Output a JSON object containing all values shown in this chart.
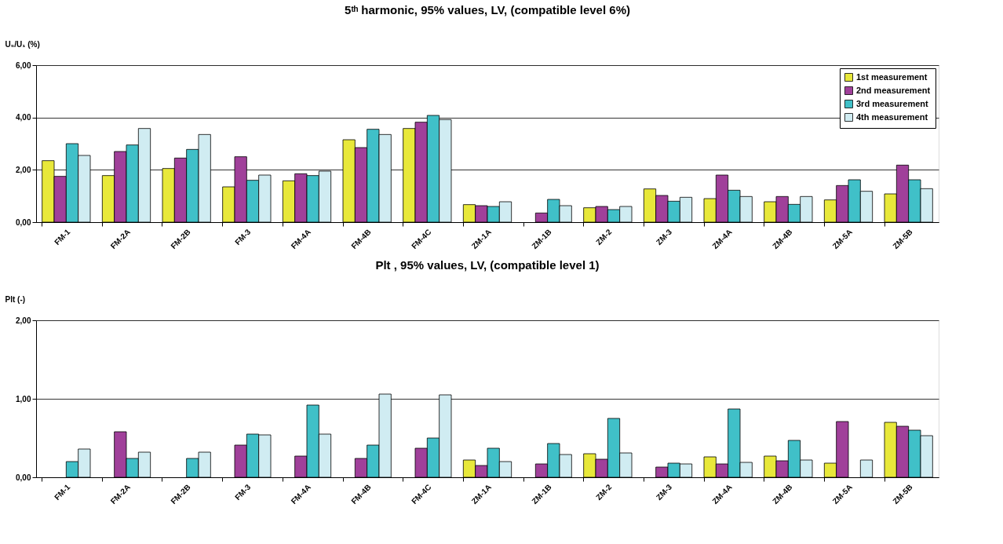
{
  "chart_data": [
    {
      "type": "bar",
      "title": "5ᵗʰ harmonic, 95% values, LV, (compatible level 6%)",
      "ylabel": "U₅/U₁ (%)",
      "categories": [
        "FM-1",
        "FM-2A",
        "FM-2B",
        "FM-3",
        "FM-4A",
        "FM-4B",
        "FM-4C",
        "ZM-1A",
        "ZM-1B",
        "ZM-2",
        "ZM-3",
        "ZM-4A",
        "ZM-4B",
        "ZM-5A",
        "ZM-5B"
      ],
      "series": [
        {
          "name": "1st measurement",
          "color": "#e8e83a",
          "values": [
            2.35,
            1.78,
            2.05,
            1.35,
            1.58,
            3.15,
            3.58,
            0.67,
            null,
            0.55,
            1.27,
            0.9,
            0.78,
            0.85,
            1.08
          ]
        },
        {
          "name": "2nd measurement",
          "color": "#a0409a",
          "values": [
            1.75,
            2.7,
            2.45,
            2.5,
            1.85,
            2.85,
            3.82,
            0.63,
            0.35,
            0.6,
            1.02,
            1.8,
            0.98,
            1.4,
            2.18
          ]
        },
        {
          "name": "3rd measurement",
          "color": "#40c0c8",
          "values": [
            3.0,
            2.95,
            2.78,
            1.6,
            1.78,
            3.55,
            4.08,
            0.6,
            0.87,
            0.48,
            0.8,
            1.22,
            0.68,
            1.62,
            1.62
          ]
        },
        {
          "name": "4th measurement",
          "color": "#d0ecf2",
          "values": [
            2.55,
            3.58,
            3.35,
            1.8,
            1.95,
            3.35,
            3.92,
            0.78,
            0.63,
            0.6,
            0.95,
            0.98,
            0.98,
            1.18,
            1.28
          ]
        }
      ],
      "ylim": [
        0,
        6
      ],
      "yticks": [
        {
          "value": 0,
          "label": "0,00"
        },
        {
          "value": 2,
          "label": "2,00"
        },
        {
          "value": 4,
          "label": "4,00"
        },
        {
          "value": 6,
          "label": "6,00"
        }
      ],
      "grid": "y",
      "legend": "top right"
    },
    {
      "type": "bar",
      "title": "Plt , 95% values, LV, (compatible level 1)",
      "ylabel": "Plt (-)",
      "categories": [
        "FM-1",
        "FM-2A",
        "FM-2B",
        "FM-3",
        "FM-4A",
        "FM-4B",
        "FM-4C",
        "ZM-1A",
        "ZM-1B",
        "ZM-2",
        "ZM-3",
        "ZM-4A",
        "ZM-4B",
        "ZM-5A",
        "ZM-5B"
      ],
      "series": [
        {
          "name": "1st measurement",
          "color": "#e8e83a",
          "values": [
            null,
            null,
            null,
            null,
            null,
            null,
            null,
            0.22,
            null,
            0.3,
            null,
            0.26,
            0.27,
            0.18,
            0.7
          ]
        },
        {
          "name": "2nd measurement",
          "color": "#a0409a",
          "values": [
            null,
            0.58,
            null,
            0.41,
            0.27,
            0.24,
            0.37,
            0.15,
            0.17,
            0.23,
            0.13,
            0.17,
            0.21,
            0.71,
            0.65
          ]
        },
        {
          "name": "3rd measurement",
          "color": "#40c0c8",
          "values": [
            0.2,
            0.24,
            0.24,
            0.55,
            0.92,
            0.41,
            0.5,
            0.37,
            0.43,
            0.75,
            0.18,
            0.87,
            0.47,
            null,
            0.6
          ]
        },
        {
          "name": "4th measurement",
          "color": "#d0ecf2",
          "values": [
            0.36,
            0.32,
            0.32,
            0.54,
            0.55,
            1.06,
            1.05,
            0.2,
            0.29,
            0.31,
            0.17,
            0.19,
            0.22,
            0.22,
            0.53
          ]
        }
      ],
      "ylim": [
        0,
        2
      ],
      "yticks": [
        {
          "value": 0,
          "label": "0,00"
        },
        {
          "value": 1,
          "label": "1,00"
        },
        {
          "value": 2,
          "label": "2,00"
        }
      ],
      "grid": "y",
      "legend": "top right"
    }
  ]
}
